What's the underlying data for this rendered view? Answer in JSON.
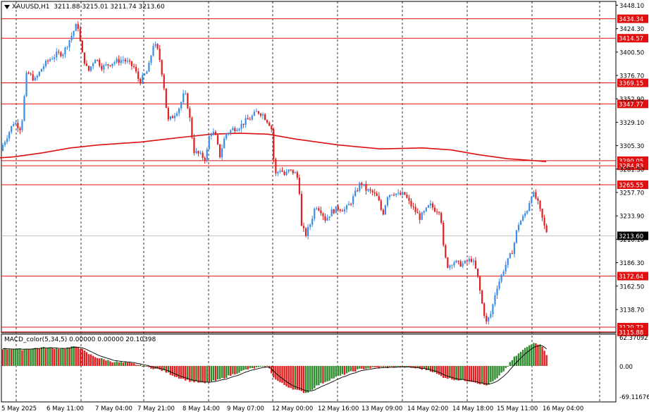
{
  "header": {
    "symbol_label": "XAUUSD,H1",
    "ohlc": "3211.88 3215.01 3211.74 3213.60"
  },
  "macd_panel": {
    "label": "MACD_color(5,34,5) 0.00000 0.00000 20.10398",
    "axis_labels": [
      "62.37092",
      "0.00",
      "-69.11676"
    ]
  },
  "price_axis": {
    "labels": [
      "3448.10",
      "3424.30",
      "3400.50",
      "3376.70",
      "3352.90",
      "3329.10",
      "3305.30",
      "3281.50",
      "3257.70",
      "3233.90",
      "3210.10",
      "3186.30",
      "3162.50",
      "3138.70"
    ],
    "current_price": "3213.60"
  },
  "levels": [
    {
      "label": "3434.34",
      "value": 3434.34
    },
    {
      "label": "3414.57",
      "value": 3414.57
    },
    {
      "label": "3369.15",
      "value": 3369.15
    },
    {
      "label": "3347.77",
      "value": 3347.77
    },
    {
      "label": "3290.05",
      "value": 3290.05
    },
    {
      "label": "3284.83",
      "value": 3284.83
    },
    {
      "label": "3265.55",
      "value": 3265.55
    },
    {
      "label": "3172.64",
      "value": 3172.64
    },
    {
      "label": "3120.73",
      "value": 3120.73
    },
    {
      "label": "3115.88",
      "value": 3115.88
    }
  ],
  "time_axis": {
    "labels": [
      "5 May 2025",
      "6 May 11:00",
      "7 May 04:00",
      "7 May 21:00",
      "8 May 14:00",
      "9 May 07:00",
      "12 May 00:00",
      "12 May 16:00",
      "13 May 09:00",
      "14 May 02:00",
      "14 May 18:00",
      "15 May 11:00",
      "16 May 04:00"
    ]
  },
  "colors": {
    "bull": "#3b8ee8",
    "bear": "#e02020",
    "level": "#e01010",
    "ma": "#dd1111",
    "hist_up": "#2e8b2e",
    "hist_down": "#e02020",
    "grid": "#000000"
  },
  "chart_data": {
    "type": "candlestick",
    "y_range": [
      3115,
      3452
    ],
    "moving_average": [
      [
        0,
        3293
      ],
      [
        20,
        3294
      ],
      [
        60,
        3298
      ],
      [
        100,
        3303
      ],
      [
        140,
        3306
      ],
      [
        200,
        3309
      ],
      [
        260,
        3314
      ],
      [
        300,
        3317
      ],
      [
        340,
        3318
      ],
      [
        380,
        3317
      ],
      [
        420,
        3312
      ],
      [
        480,
        3306
      ],
      [
        540,
        3302
      ],
      [
        600,
        3303
      ],
      [
        640,
        3301
      ],
      [
        680,
        3296
      ],
      [
        720,
        3292
      ],
      [
        760,
        3290
      ],
      [
        775,
        3289
      ]
    ],
    "close_anchors": [
      [
        0,
        3300
      ],
      [
        10,
        3315
      ],
      [
        20,
        3330
      ],
      [
        30,
        3322
      ],
      [
        38,
        3380
      ],
      [
        50,
        3372
      ],
      [
        60,
        3385
      ],
      [
        70,
        3393
      ],
      [
        80,
        3398
      ],
      [
        90,
        3400
      ],
      [
        100,
        3415
      ],
      [
        110,
        3430
      ],
      [
        116,
        3400
      ],
      [
        125,
        3380
      ],
      [
        135,
        3395
      ],
      [
        145,
        3385
      ],
      [
        160,
        3390
      ],
      [
        175,
        3393
      ],
      [
        190,
        3385
      ],
      [
        198,
        3370
      ],
      [
        210,
        3382
      ],
      [
        218,
        3410
      ],
      [
        225,
        3400
      ],
      [
        232,
        3370
      ],
      [
        238,
        3330
      ],
      [
        245,
        3335
      ],
      [
        255,
        3345
      ],
      [
        262,
        3360
      ],
      [
        268,
        3340
      ],
      [
        275,
        3300
      ],
      [
        285,
        3295
      ],
      [
        292,
        3292
      ],
      [
        298,
        3320
      ],
      [
        305,
        3317
      ],
      [
        312,
        3295
      ],
      [
        320,
        3317
      ],
      [
        330,
        3322
      ],
      [
        340,
        3325
      ],
      [
        348,
        3330
      ],
      [
        355,
        3333
      ],
      [
        365,
        3340
      ],
      [
        372,
        3338
      ],
      [
        380,
        3330
      ],
      [
        385,
        3325
      ],
      [
        390,
        3275
      ],
      [
        398,
        3282
      ],
      [
        404,
        3275
      ],
      [
        410,
        3280
      ],
      [
        418,
        3278
      ],
      [
        424,
        3270
      ],
      [
        428,
        3222
      ],
      [
        434,
        3215
      ],
      [
        440,
        3225
      ],
      [
        448,
        3245
      ],
      [
        455,
        3240
      ],
      [
        462,
        3230
      ],
      [
        470,
        3238
      ],
      [
        480,
        3242
      ],
      [
        490,
        3240
      ],
      [
        498,
        3248
      ],
      [
        505,
        3258
      ],
      [
        512,
        3268
      ],
      [
        520,
        3260
      ],
      [
        528,
        3258
      ],
      [
        536,
        3252
      ],
      [
        543,
        3235
      ],
      [
        550,
        3255
      ],
      [
        558,
        3258
      ],
      [
        566,
        3255
      ],
      [
        574,
        3256
      ],
      [
        580,
        3248
      ],
      [
        588,
        3240
      ],
      [
        596,
        3232
      ],
      [
        603,
        3238
      ],
      [
        610,
        3245
      ],
      [
        618,
        3240
      ],
      [
        625,
        3240
      ],
      [
        630,
        3195
      ],
      [
        636,
        3182
      ],
      [
        643,
        3188
      ],
      [
        650,
        3185
      ],
      [
        658,
        3185
      ],
      [
        664,
        3188
      ],
      [
        670,
        3190
      ],
      [
        677,
        3175
      ],
      [
        684,
        3145
      ],
      [
        690,
        3125
      ],
      [
        697,
        3135
      ],
      [
        704,
        3160
      ],
      [
        710,
        3170
      ],
      [
        716,
        3182
      ],
      [
        722,
        3190
      ],
      [
        728,
        3200
      ],
      [
        735,
        3225
      ],
      [
        742,
        3232
      ],
      [
        748,
        3240
      ],
      [
        755,
        3258
      ],
      [
        762,
        3250
      ],
      [
        768,
        3235
      ],
      [
        773,
        3222
      ],
      [
        778,
        3215
      ]
    ],
    "macd_anchors": [
      [
        0,
        40
      ],
      [
        30,
        38
      ],
      [
        60,
        42
      ],
      [
        90,
        40
      ],
      [
        110,
        45
      ],
      [
        125,
        28
      ],
      [
        140,
        18
      ],
      [
        160,
        10
      ],
      [
        190,
        5
      ],
      [
        210,
        -3
      ],
      [
        230,
        -10
      ],
      [
        250,
        -25
      ],
      [
        270,
        -35
      ],
      [
        290,
        -40
      ],
      [
        310,
        -32
      ],
      [
        330,
        -20
      ],
      [
        350,
        -8
      ],
      [
        380,
        0
      ],
      [
        390,
        -30
      ],
      [
        405,
        -45
      ],
      [
        420,
        -55
      ],
      [
        435,
        -62
      ],
      [
        450,
        -45
      ],
      [
        470,
        -30
      ],
      [
        490,
        -18
      ],
      [
        510,
        -8
      ],
      [
        530,
        -4
      ],
      [
        550,
        -3
      ],
      [
        570,
        -2
      ],
      [
        590,
        -5
      ],
      [
        610,
        -10
      ],
      [
        628,
        -25
      ],
      [
        640,
        -30
      ],
      [
        655,
        -33
      ],
      [
        670,
        -35
      ],
      [
        690,
        -45
      ],
      [
        705,
        -30
      ],
      [
        718,
        -5
      ],
      [
        730,
        20
      ],
      [
        745,
        40
      ],
      [
        758,
        55
      ],
      [
        770,
        45
      ],
      [
        776,
        25
      ]
    ]
  }
}
